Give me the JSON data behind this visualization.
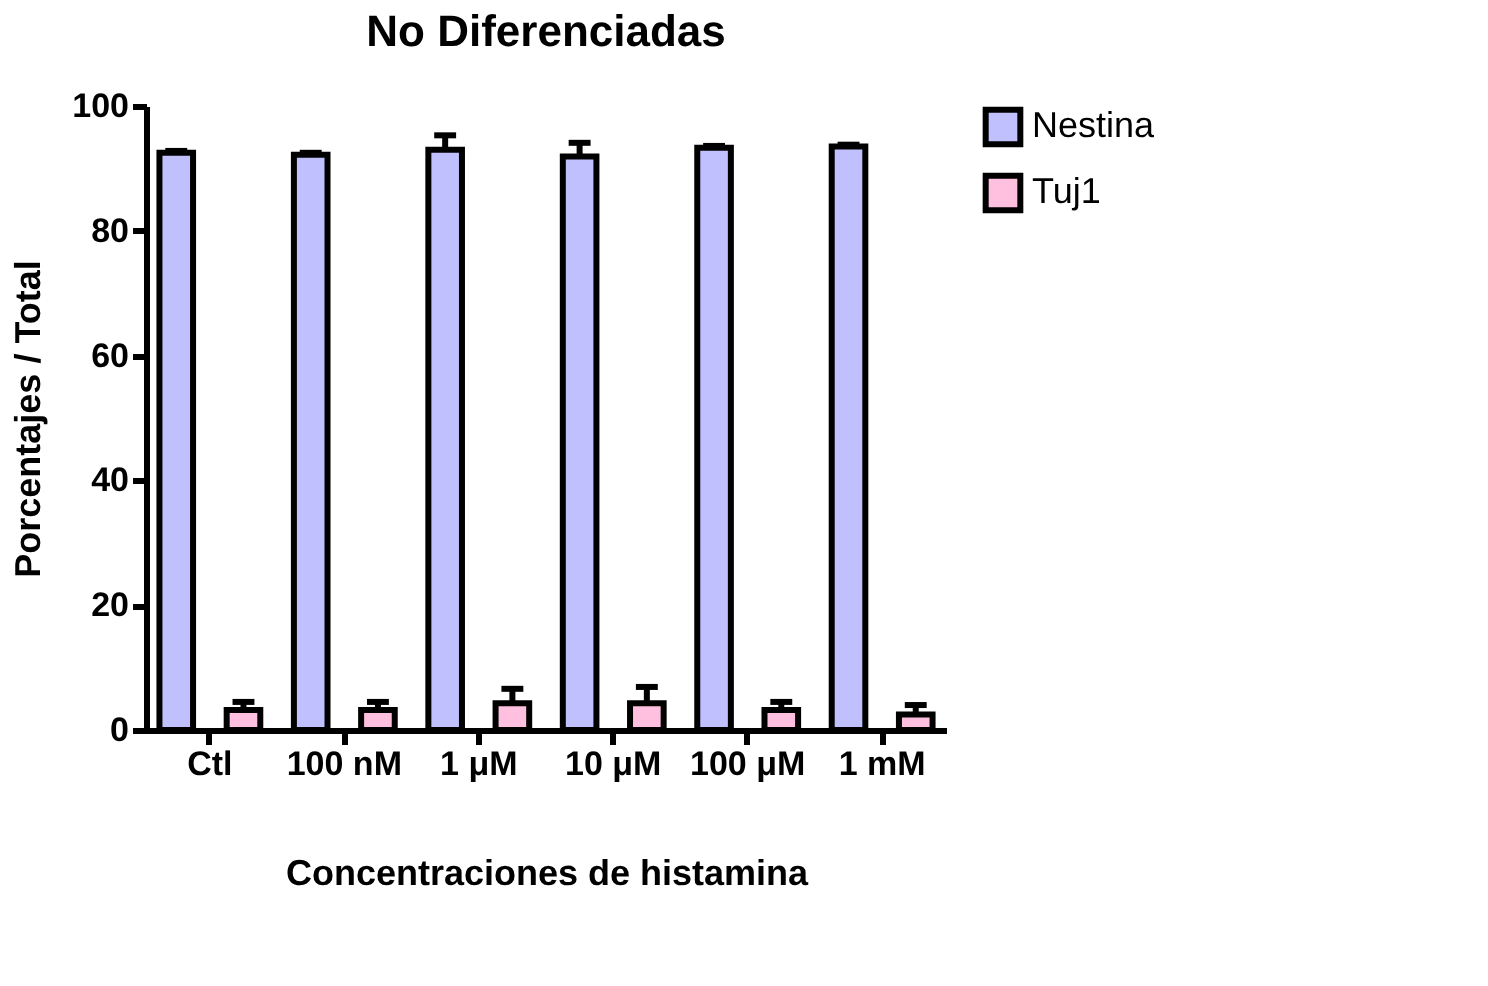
{
  "chart_data": {
    "type": "bar",
    "title": "No Diferenciadas",
    "xlabel": "Concentraciones de histamina",
    "ylabel": "Porcentajes / Total",
    "categories": [
      "Ctl",
      "100 nM",
      "1 μM",
      "10 μM",
      "100 μM",
      "1 mM"
    ],
    "series": [
      {
        "name": "Nestina",
        "color": "#c0c0ff",
        "values": [
          92.5,
          92.2,
          93.0,
          91.9,
          93.3,
          93.5
        ],
        "errors": [
          0.3,
          0.3,
          2.3,
          2.2,
          0.3,
          0.3
        ]
      },
      {
        "name": "Tuj1",
        "color": "#ffc0e0",
        "values": [
          3.2,
          3.2,
          4.3,
          4.3,
          3.2,
          2.5
        ],
        "errors": [
          1.3,
          1.3,
          2.3,
          2.6,
          1.3,
          1.5
        ]
      }
    ],
    "ylim": [
      0,
      100
    ],
    "yticks": [
      0,
      20,
      40,
      60,
      80,
      100
    ],
    "grid": false,
    "legend": "top right"
  }
}
